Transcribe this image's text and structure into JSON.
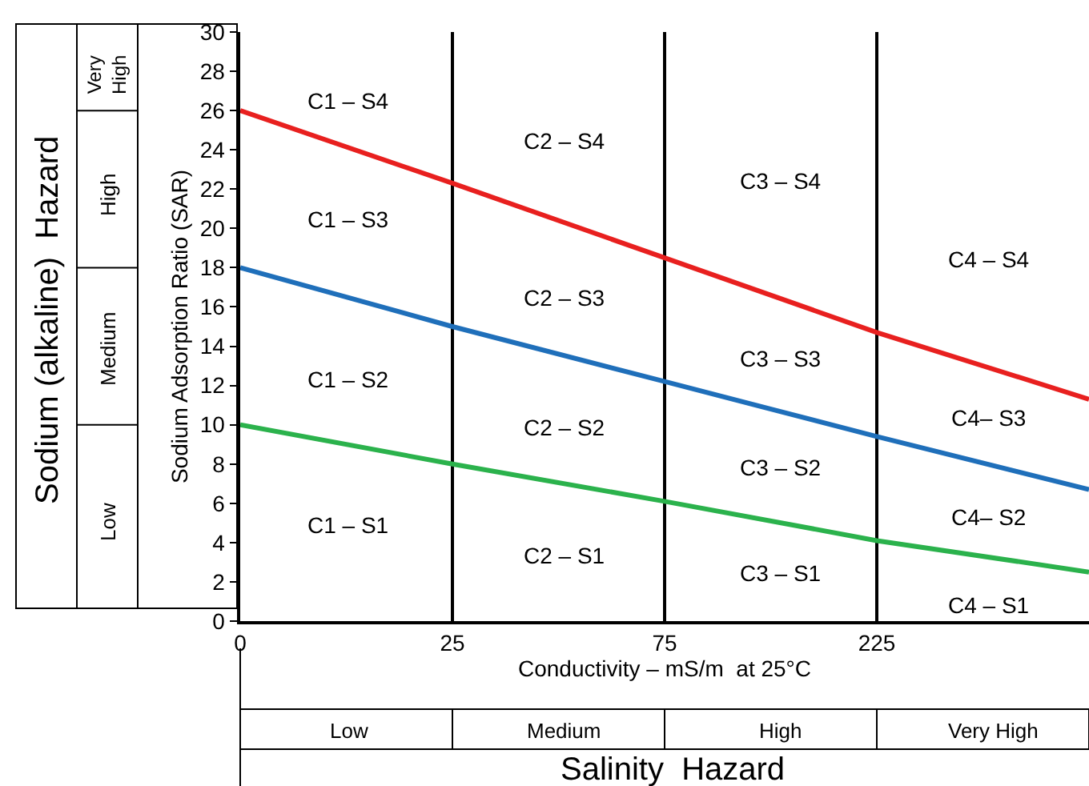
{
  "chart_data": {
    "type": "line",
    "ylabel": "Sodium Adsorption Ratio (SAR)",
    "xlabel": "Conductivity – mS/m  at 25°C",
    "categories": [
      "0",
      "25",
      "75",
      "225",
      null
    ],
    "series": [
      {
        "color": "#e8201f",
        "values": [
          26,
          22.3,
          18.5,
          14.7,
          11.3
        ]
      },
      {
        "color": "#1f6fba",
        "values": [
          18,
          15,
          12.2,
          9.4,
          6.7
        ]
      },
      {
        "color": "#2bb24c",
        "values": [
          10,
          8,
          6.1,
          4.1,
          2.5
        ]
      }
    ],
    "ylim": [
      0,
      30
    ],
    "yticks": [
      0,
      2,
      4,
      6,
      8,
      10,
      12,
      14,
      16,
      18,
      20,
      22,
      24,
      26,
      28,
      30
    ],
    "grid": "x",
    "marker": "none",
    "line_style": "solid",
    "annotations": [
      "Sodium (alkaline)  Hazard",
      "Low",
      "Medium",
      "High",
      "Very High",
      "Salinity  Hazard",
      "Low",
      "Medium",
      "High",
      "Very High",
      "C1 – S4",
      "C1 – S3",
      "C1 – S2",
      "C1 – S1",
      "C2 – S4",
      "C2 – S3",
      "C2 – S2",
      "C2 – S1",
      "C3 – S4",
      "C3 – S3",
      "C3 – S2",
      "C3 – S1",
      "C4 – S4",
      "C4– S3",
      "C4– S2",
      "C4 – S1"
    ]
  }
}
